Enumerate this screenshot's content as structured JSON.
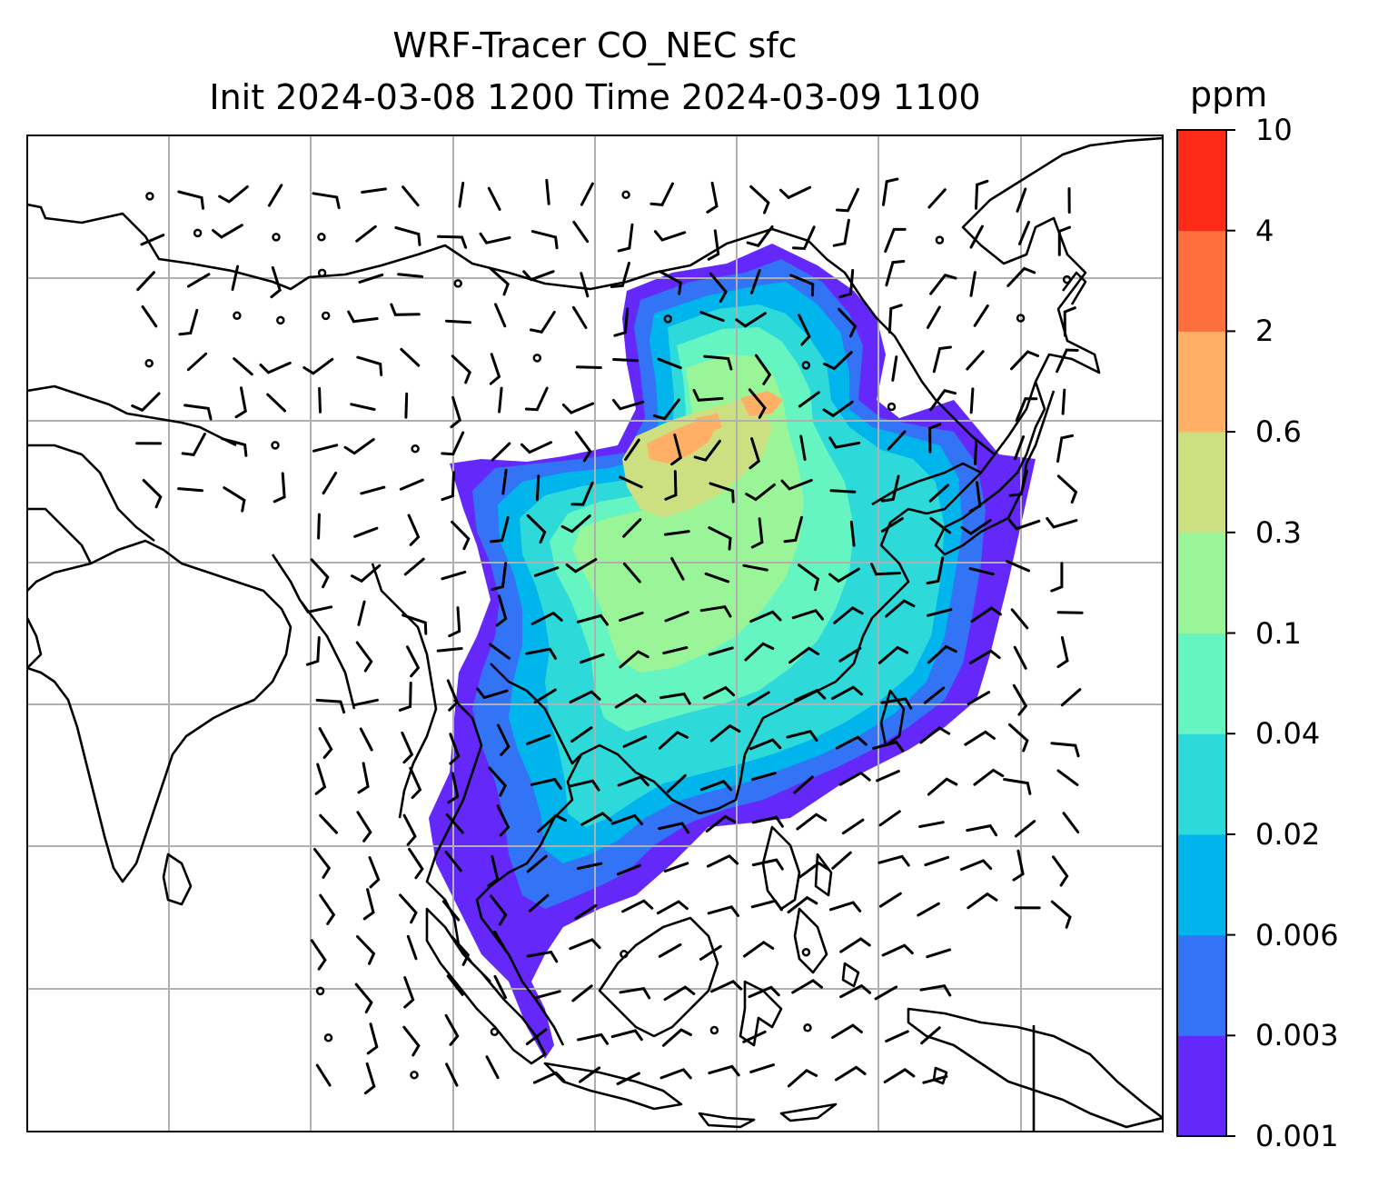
{
  "title": {
    "line1": "WRF-Tracer CO_NEC sfc",
    "line2": "Init 2024-03-08 1200 Time 2024-03-09 1100"
  },
  "colorbar": {
    "units": "ppm",
    "levels": [
      "0.001",
      "0.003",
      "0.006",
      "0.02",
      "0.04",
      "0.1",
      "0.3",
      "0.6",
      "2",
      "4",
      "10"
    ],
    "colors": [
      "#6428fa",
      "#3274f5",
      "#00b4ec",
      "#2ed9d9",
      "#65f5c2",
      "#99f598",
      "#cce082",
      "#ffb066",
      "#ff6e3d",
      "#ff2a18"
    ]
  },
  "map": {
    "background": "#ffffff",
    "gridlines": true,
    "coastline_color": "#000000",
    "wind_barb_color": "#000000"
  }
}
